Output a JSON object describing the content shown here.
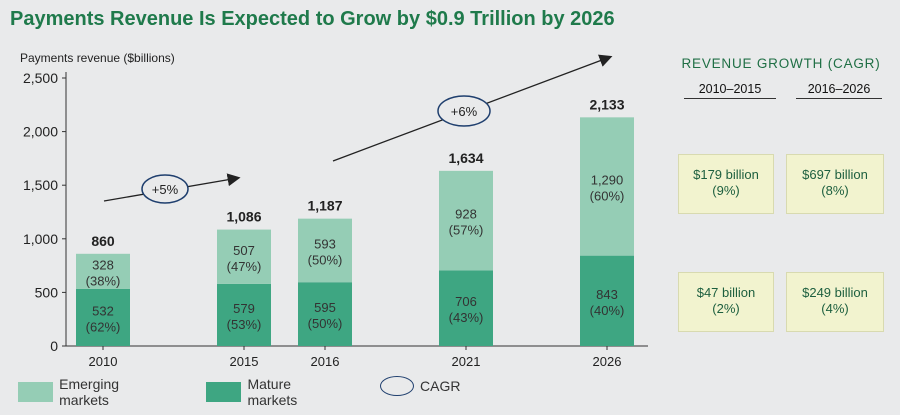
{
  "title": "Payments Revenue Is Expected to Grow by $0.9 Trillion by 2026",
  "chart_data": {
    "type": "bar",
    "stacked": true,
    "ylabel": "Payments revenue ($billions)",
    "ylim": [
      0,
      2500
    ],
    "yticks": [
      0,
      500,
      1000,
      1500,
      2000,
      2500
    ],
    "ytick_labels": [
      "0",
      "500",
      "1,000",
      "1,500",
      "2,000",
      "2,500"
    ],
    "categories": [
      "2010",
      "2015",
      "2016",
      "2021",
      "2026"
    ],
    "totals": [
      860,
      1086,
      1187,
      1634,
      2133
    ],
    "total_labels": [
      "860",
      "1,086",
      "1,187",
      "1,634",
      "2,133"
    ],
    "series": [
      {
        "name": "Mature markets",
        "color": "#3ea682",
        "values": [
          532,
          579,
          595,
          706,
          843
        ],
        "labels": [
          "532",
          "579",
          "595",
          "706",
          "843"
        ],
        "shares": [
          "(62%)",
          "(53%)",
          "(50%)",
          "(43%)",
          "(40%)"
        ]
      },
      {
        "name": "Emerging markets",
        "color": "#95cdb5",
        "values": [
          328,
          507,
          593,
          928,
          1290
        ],
        "labels": [
          "328",
          "507",
          "593",
          "928",
          "1,290"
        ],
        "shares": [
          "(38%)",
          "(47%)",
          "(50%)",
          "(57%)",
          "(60%)"
        ]
      }
    ],
    "annotations": [
      {
        "label": "+5%",
        "from": "2010",
        "to": "2015"
      },
      {
        "label": "+6%",
        "from": "2016",
        "to": "2026"
      }
    ]
  },
  "revenue_growth": {
    "title": "REVENUE GROWTH (CAGR)",
    "columns": [
      "2010–2015",
      "2016–2026"
    ],
    "rows": [
      [
        {
          "value": "$179 billion",
          "pct": "(9%)"
        },
        {
          "value": "$697 billion",
          "pct": "(8%)"
        }
      ],
      [
        {
          "value": "$47 billion",
          "pct": "(2%)"
        },
        {
          "value": "$249 billion",
          "pct": "(4%)"
        }
      ]
    ]
  },
  "legend": {
    "emerging": "Emerging markets",
    "mature": "Mature markets",
    "cagr": "CAGR"
  },
  "colors": {
    "title": "#1f7a4b",
    "mature": "#3ea682",
    "emerging": "#95cdb5",
    "box_bg": "#f2f3cf",
    "ellipse": "#1f3f6e"
  }
}
